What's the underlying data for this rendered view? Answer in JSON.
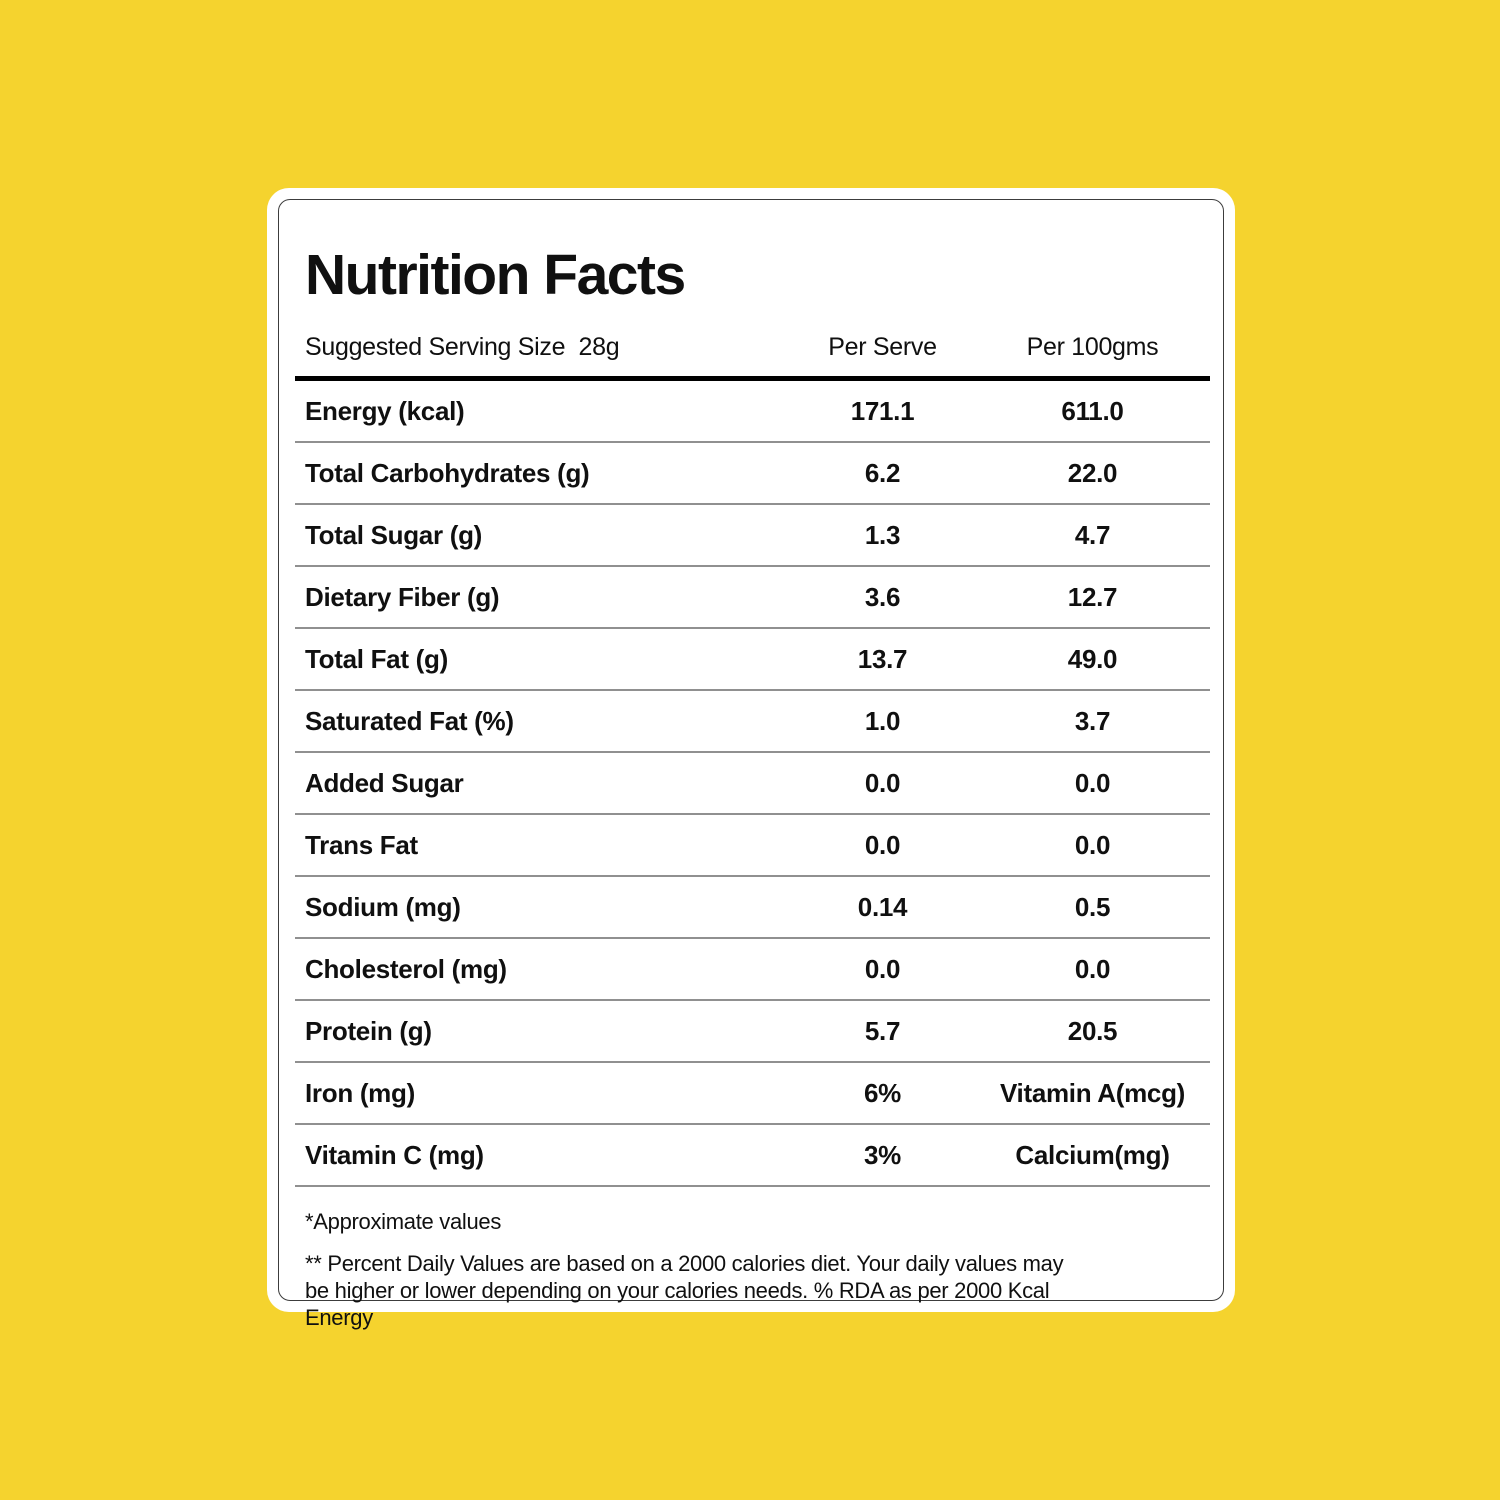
{
  "colors": {
    "background": "#F5D32E",
    "card": "#FFFFFF",
    "inner_border": "#3C3C3C",
    "header_rule": "#000000",
    "row_divider": "#909090",
    "text": "#101010"
  },
  "nutrition": {
    "title": "Nutrition Facts",
    "header": {
      "serving_label": "Suggested Serving Size  28g",
      "col_per_serve": "Per Serve",
      "col_per_100": "Per 100gms"
    },
    "rows": [
      {
        "label": "Energy (kcal)",
        "per_serve": "171.1",
        "per_100": "611.0"
      },
      {
        "label": "Total Carbohydrates (g)",
        "per_serve": "6.2",
        "per_100": "22.0"
      },
      {
        "label": "Total Sugar (g)",
        "per_serve": "1.3",
        "per_100": "4.7"
      },
      {
        "label": "Dietary Fiber (g)",
        "per_serve": "3.6",
        "per_100": "12.7"
      },
      {
        "label": "Total Fat (g)",
        "per_serve": "13.7",
        "per_100": "49.0"
      },
      {
        "label": "Saturated Fat (%)",
        "per_serve": "1.0",
        "per_100": "3.7"
      },
      {
        "label": "Added Sugar",
        "per_serve": "0.0",
        "per_100": "0.0"
      },
      {
        "label": "Trans Fat",
        "per_serve": "0.0",
        "per_100": "0.0"
      },
      {
        "label": "Sodium (mg)",
        "per_serve": "0.14",
        "per_100": "0.5"
      },
      {
        "label": "Cholesterol (mg)",
        "per_serve": "0.0",
        "per_100": "0.0"
      },
      {
        "label": "Protein (g)",
        "per_serve": "5.7",
        "per_100": "20.5"
      },
      {
        "label": "Iron (mg)",
        "per_serve": "6%",
        "per_100": "Vitamin A(mcg)"
      },
      {
        "label": "Vitamin C (mg)",
        "per_serve": "3%",
        "per_100": "Calcium(mg)"
      }
    ],
    "footnotes": {
      "approx": "*Approximate values",
      "daily": "** Percent Daily Values are based on a 2000 calories diet. Your daily values may be higher or lower depending on your calories needs. % RDA as per 2000 Kcal Energy"
    }
  }
}
